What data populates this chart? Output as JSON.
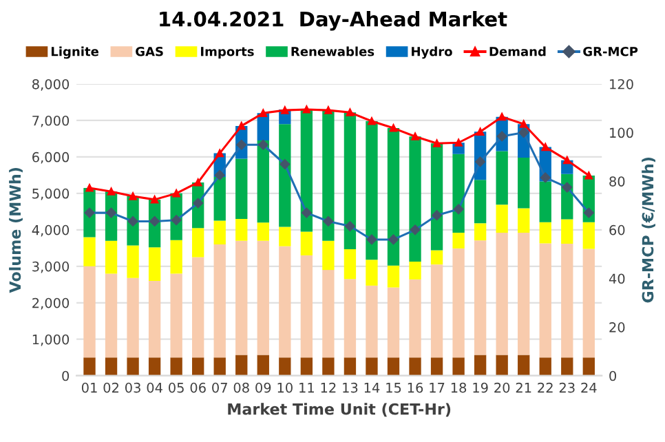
{
  "chart_data": {
    "type": "bar",
    "title": "14.04.2021  Day-Ahead Market",
    "xlabel": "Market Time Unit (CET-Hr)",
    "ylabel": "Volume (MWh)",
    "y2label": "GR-MCP (€/MWh)",
    "categories": [
      "01",
      "02",
      "03",
      "04",
      "05",
      "06",
      "07",
      "08",
      "09",
      "10",
      "11",
      "12",
      "13",
      "14",
      "15",
      "16",
      "17",
      "18",
      "19",
      "20",
      "21",
      "22",
      "23",
      "24"
    ],
    "stacked": true,
    "grid": "y",
    "legend": "top",
    "ylim": [
      0,
      8000
    ],
    "yticks": [
      0,
      {
        "value": 1000,
        "label": "1,000"
      },
      {
        "value": 2000,
        "label": "2,000"
      },
      {
        "value": 3000,
        "label": "3,000"
      },
      {
        "value": 4000,
        "label": "4,000"
      },
      {
        "value": 5000,
        "label": "5,000"
      },
      {
        "value": 6000,
        "label": "6,000"
      },
      {
        "value": 7000,
        "label": "7,000"
      },
      {
        "value": 8000,
        "label": "8,000"
      }
    ],
    "y2lim": [
      0,
      120
    ],
    "y2ticks": [
      0,
      20,
      40,
      60,
      80,
      100,
      120
    ],
    "series": [
      {
        "name": "Lignite",
        "color": "#984807",
        "values": [
          500,
          500,
          500,
          500,
          500,
          500,
          500,
          570,
          570,
          500,
          500,
          500,
          500,
          500,
          500,
          500,
          500,
          500,
          570,
          570,
          570,
          500,
          500,
          500
        ]
      },
      {
        "name": "GAS",
        "color": "#f8cbad",
        "values": [
          2500,
          2300,
          2180,
          2100,
          2300,
          2750,
          3100,
          3130,
          3130,
          3050,
          2800,
          2400,
          2150,
          1970,
          1920,
          2140,
          2550,
          2990,
          3140,
          3350,
          3350,
          3130,
          3120,
          2980
        ]
      },
      {
        "name": "Imports",
        "color": "#ffff00",
        "values": [
          800,
          900,
          890,
          920,
          920,
          800,
          650,
          600,
          500,
          530,
          650,
          800,
          820,
          710,
          600,
          490,
          390,
          430,
          470,
          770,
          670,
          580,
          670,
          730
        ]
      },
      {
        "name": "Renewables",
        "color": "#00b050",
        "values": [
          1350,
          1350,
          1350,
          1310,
          1280,
          1250,
          1200,
          1650,
          2250,
          2820,
          3350,
          3580,
          3750,
          3800,
          3770,
          3430,
          2930,
          2160,
          1190,
          1470,
          1390,
          1120,
          1240,
          1280
        ]
      },
      {
        "name": "Hydro",
        "color": "#0070c0",
        "values": [
          0,
          0,
          0,
          0,
          0,
          0,
          650,
          900,
          750,
          400,
          0,
          0,
          0,
          0,
          0,
          0,
          0,
          310,
          1320,
          940,
          920,
          940,
          380,
          0
        ]
      },
      {
        "name": "Demand",
        "type": "line",
        "color": "#ff0000",
        "marker": "triangle",
        "values": [
          5150,
          5050,
          4920,
          4830,
          5000,
          5300,
          6100,
          6850,
          7200,
          7280,
          7300,
          7280,
          7220,
          6980,
          6790,
          6560,
          6370,
          6390,
          6690,
          7100,
          6900,
          6270,
          5910,
          5490
        ]
      },
      {
        "name": "GR-MCP",
        "type": "line",
        "axis": "y2",
        "color": "#1f6fb4",
        "marker": "diamond",
        "values": [
          67,
          67,
          63.5,
          63.5,
          64,
          71,
          82.5,
          95,
          95,
          87,
          67,
          63.5,
          61.5,
          56,
          56,
          60,
          66,
          68.5,
          88,
          98.5,
          100,
          81.5,
          77.5,
          67
        ]
      }
    ]
  }
}
